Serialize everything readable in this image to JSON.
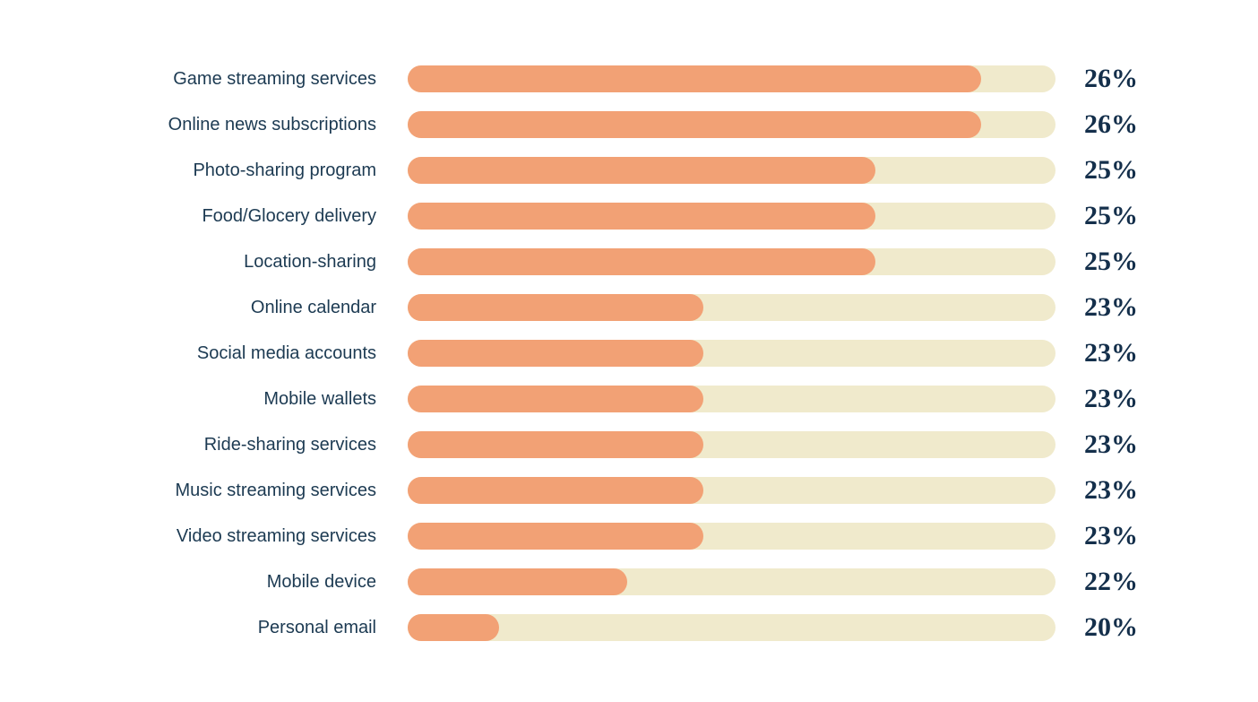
{
  "chart_data": {
    "type": "bar",
    "orientation": "horizontal",
    "title": "",
    "xlabel": "",
    "ylabel": "",
    "legend": false,
    "grid": false,
    "categories": [
      "Game streaming services",
      "Online news subscriptions",
      "Photo-sharing program",
      "Food/Glocery delivery",
      "Location-sharing",
      "Online calendar",
      "Social media accounts",
      "Mobile wallets",
      "Ride-sharing services",
      "Music streaming services",
      "Video streaming services",
      "Mobile device",
      "Personal email"
    ],
    "values": [
      26,
      26,
      25,
      25,
      25,
      23,
      23,
      23,
      23,
      23,
      23,
      22,
      20
    ],
    "value_labels": [
      "26%",
      "26%",
      "25%",
      "25%",
      "25%",
      "23%",
      "23%",
      "23%",
      "23%",
      "23%",
      "23%",
      "22%",
      "20%"
    ],
    "bar_fill_pct": [
      88.5,
      88.5,
      72.2,
      72.2,
      72.2,
      45.6,
      45.6,
      45.6,
      45.6,
      45.6,
      45.6,
      33.9,
      14.1
    ],
    "track_max_pct": 100
  },
  "colors": {
    "bar_fill": "#f2a175",
    "bar_track": "#f0eacc",
    "label_text": "#1c3a52",
    "value_text": "#142f4b",
    "background": "#ffffff"
  }
}
